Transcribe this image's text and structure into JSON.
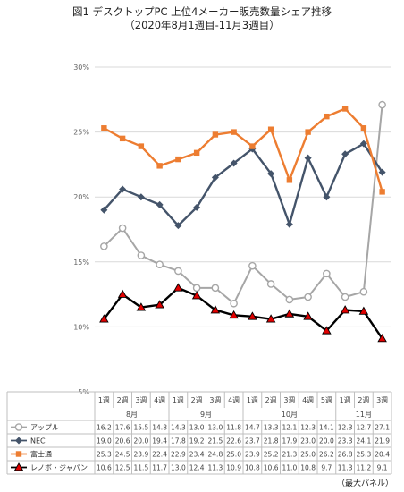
{
  "title_line1": "図1 デスクトップPC 上位4メーカー販売数量シェア推移",
  "title_line2": "（2020年8月1週目-11月3週目）",
  "source": "（最大パネル）",
  "chart_data": {
    "type": "line",
    "title": "図1 デスクトップPC 上位4メーカー販売数量シェア推移",
    "subtitle": "（2020年8月1週目-11月3週目）",
    "xlabel": "",
    "ylabel": "",
    "ylim": [
      5,
      30
    ],
    "yticks": [
      "5%",
      "10%",
      "15%",
      "20%",
      "25%",
      "30%"
    ],
    "ytick_values": [
      5,
      10,
      15,
      20,
      25,
      30
    ],
    "grid": true,
    "legend": "data-table",
    "weeks": [
      "1週",
      "2週",
      "3週",
      "4週",
      "1週",
      "2週",
      "3週",
      "4週",
      "1週",
      "2週",
      "3週",
      "4週",
      "5週",
      "1週",
      "2週",
      "3週"
    ],
    "months": [
      {
        "label": "8月",
        "start": 0,
        "end": 3
      },
      {
        "label": "9月",
        "start": 4,
        "end": 7
      },
      {
        "label": "10月",
        "start": 8,
        "end": 12
      },
      {
        "label": "11月",
        "start": 13,
        "end": 15
      }
    ],
    "series": [
      {
        "name": "アップル",
        "color": "#a6a6a6",
        "marker": "circle-open",
        "values": [
          16.2,
          17.6,
          15.5,
          14.8,
          14.3,
          13.0,
          13.0,
          11.8,
          14.7,
          13.3,
          12.1,
          12.3,
          14.1,
          12.3,
          12.7,
          27.1
        ],
        "labels": [
          "16.2",
          "17.6",
          "15.5",
          "14.8",
          "14.3",
          "13.0",
          "13.0",
          "11.8",
          "14.7",
          "13.3",
          "12.1",
          "12.3",
          "14.1",
          "12.3",
          "12.7",
          "27.1"
        ]
      },
      {
        "name": "NEC",
        "color": "#44546a",
        "marker": "diamond",
        "values": [
          19.0,
          20.6,
          20.0,
          19.4,
          17.8,
          19.2,
          21.5,
          22.6,
          23.7,
          21.8,
          17.9,
          23.0,
          20.0,
          23.3,
          24.1,
          21.9
        ],
        "labels": [
          "19.0",
          "20.6",
          "20.0",
          "19.4",
          "17.8",
          "19.2",
          "21.5",
          "22.6",
          "23.7",
          "21.8",
          "17.9",
          "23.0",
          "20.0",
          "23.3",
          "24.1",
          "21.9"
        ]
      },
      {
        "name": "富士通",
        "color": "#ed7d31",
        "marker": "square",
        "values": [
          25.3,
          24.5,
          23.9,
          22.4,
          22.9,
          23.4,
          24.8,
          25.0,
          23.9,
          25.2,
          21.3,
          25.0,
          26.2,
          26.8,
          25.3,
          20.4
        ],
        "labels": [
          "25.3",
          "24.5",
          "23.9",
          "22.4",
          "22.9",
          "23.4",
          "24.8",
          "25.0",
          "23.9",
          "25.2",
          "21.3",
          "25.0",
          "26.2",
          "26.8",
          "25.3",
          "20.4"
        ]
      },
      {
        "name": "レノボ・ジャパン",
        "color": "#000000",
        "marker": "triangle-red",
        "values": [
          10.6,
          12.5,
          11.5,
          11.7,
          13.0,
          12.4,
          11.3,
          10.9,
          10.8,
          10.6,
          11.0,
          10.8,
          9.7,
          11.3,
          11.2,
          9.1
        ],
        "labels": [
          "10.6",
          "12.5",
          "11.5",
          "11.7",
          "13.0",
          "12.4",
          "11.3",
          "10.9",
          "10.8",
          "10.6",
          "11.0",
          "10.8",
          "9.7",
          "11.3",
          "11.2",
          "9.1"
        ]
      }
    ]
  }
}
